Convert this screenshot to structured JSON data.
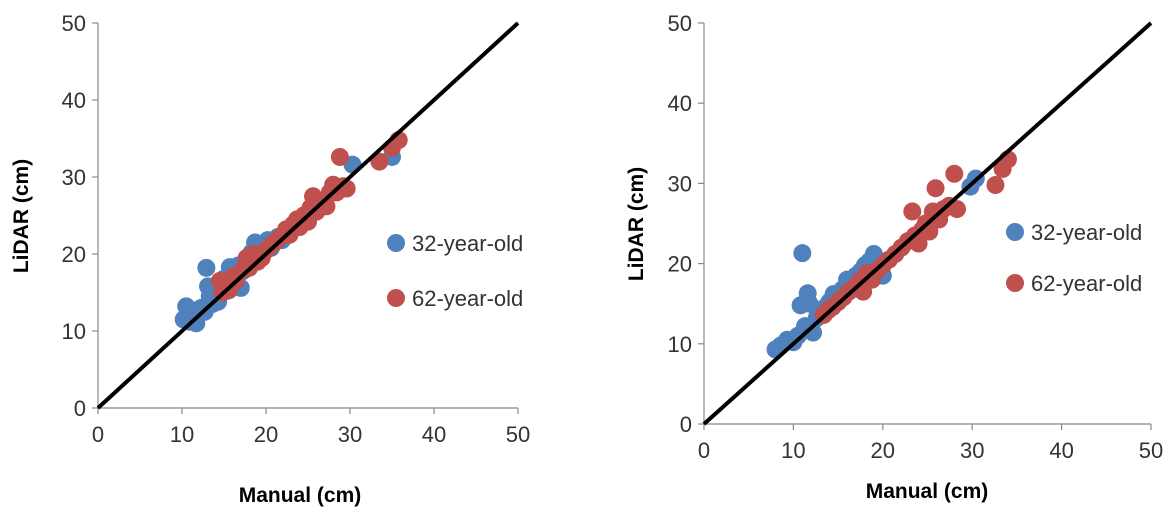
{
  "chart_data": [
    {
      "type": "scatter",
      "xlabel": "Manual (cm)",
      "ylabel": "LiDAR (cm)",
      "xlim": [
        0,
        50
      ],
      "ylim": [
        0,
        50
      ],
      "xticks": [
        "0",
        "10",
        "20",
        "30",
        "40",
        "50"
      ],
      "yticks": [
        "0",
        "10",
        "20",
        "30",
        "40",
        "50"
      ],
      "grid": false,
      "legend_position": "right",
      "reference_line": {
        "x": [
          0,
          50
        ],
        "y": [
          0,
          50
        ]
      },
      "series": [
        {
          "name": "32-year-old",
          "color": "#4F81BD",
          "points": [
            [
              10.2,
              11.5
            ],
            [
              10.5,
              13.2
            ],
            [
              10.8,
              12.0
            ],
            [
              11.0,
              11.2
            ],
            [
              11.3,
              12.4
            ],
            [
              11.7,
              11.0
            ],
            [
              12.0,
              12.8
            ],
            [
              12.3,
              13.0
            ],
            [
              12.7,
              12.5
            ],
            [
              12.9,
              18.2
            ],
            [
              13.1,
              15.8
            ],
            [
              13.3,
              14.5
            ],
            [
              13.6,
              13.5
            ],
            [
              14.0,
              14.8
            ],
            [
              14.3,
              13.8
            ],
            [
              14.6,
              15.5
            ],
            [
              15.0,
              16.8
            ],
            [
              15.3,
              15.2
            ],
            [
              15.7,
              18.3
            ],
            [
              16.0,
              17.5
            ],
            [
              16.3,
              16.0
            ],
            [
              16.7,
              18.5
            ],
            [
              17.0,
              15.6
            ],
            [
              17.3,
              17.8
            ],
            [
              17.7,
              19.0
            ],
            [
              18.0,
              18.5
            ],
            [
              18.3,
              20.2
            ],
            [
              18.7,
              21.5
            ],
            [
              19.0,
              19.8
            ],
            [
              19.4,
              21.0
            ],
            [
              19.8,
              20.5
            ],
            [
              20.2,
              21.8
            ],
            [
              20.6,
              20.8
            ],
            [
              21.0,
              21.5
            ],
            [
              21.4,
              22.2
            ],
            [
              21.9,
              21.8
            ],
            [
              30.3,
              31.6
            ],
            [
              35.0,
              32.6
            ]
          ]
        },
        {
          "name": "62-year-old",
          "color": "#C0504D",
          "points": [
            [
              14.5,
              16.5
            ],
            [
              14.8,
              15.0
            ],
            [
              15.2,
              16.0
            ],
            [
              15.6,
              15.3
            ],
            [
              16.0,
              17.0
            ],
            [
              16.4,
              16.5
            ],
            [
              16.8,
              17.5
            ],
            [
              17.3,
              18.0
            ],
            [
              17.7,
              19.5
            ],
            [
              18.0,
              18.2
            ],
            [
              18.5,
              20.0
            ],
            [
              19.0,
              19.0
            ],
            [
              19.5,
              19.5
            ],
            [
              20.0,
              20.5
            ],
            [
              20.5,
              21.0
            ],
            [
              21.0,
              21.5
            ],
            [
              21.5,
              22.0
            ],
            [
              22.0,
              22.5
            ],
            [
              22.4,
              23.2
            ],
            [
              22.8,
              22.5
            ],
            [
              23.2,
              23.8
            ],
            [
              23.7,
              24.5
            ],
            [
              24.0,
              23.5
            ],
            [
              24.5,
              25.0
            ],
            [
              25.0,
              24.2
            ],
            [
              25.3,
              26.0
            ],
            [
              25.6,
              27.5
            ],
            [
              26.0,
              25.5
            ],
            [
              26.4,
              26.5
            ],
            [
              26.8,
              27.0
            ],
            [
              27.2,
              26.2
            ],
            [
              27.6,
              28.0
            ],
            [
              28.0,
              29.0
            ],
            [
              28.4,
              28.0
            ],
            [
              28.8,
              32.6
            ],
            [
              29.2,
              28.8
            ],
            [
              29.6,
              28.5
            ],
            [
              33.5,
              32.0
            ],
            [
              35.0,
              33.8
            ],
            [
              35.8,
              34.8
            ]
          ]
        }
      ]
    },
    {
      "type": "scatter",
      "xlabel": "Manual (cm)",
      "ylabel": "LiDAR (cm)",
      "xlim": [
        0,
        50
      ],
      "ylim": [
        0,
        50
      ],
      "xticks": [
        "0",
        "10",
        "20",
        "30",
        "40",
        "50"
      ],
      "yticks": [
        "0",
        "10",
        "20",
        "30",
        "40",
        "50"
      ],
      "grid": false,
      "legend_position": "right",
      "reference_line": {
        "x": [
          0,
          50
        ],
        "y": [
          0,
          50
        ]
      },
      "series": [
        {
          "name": "32-year-old",
          "color": "#4F81BD",
          "points": [
            [
              8.0,
              9.3
            ],
            [
              8.6,
              9.8
            ],
            [
              9.3,
              10.5
            ],
            [
              10.0,
              10.2
            ],
            [
              10.5,
              11.0
            ],
            [
              10.8,
              14.8
            ],
            [
              11.0,
              21.3
            ],
            [
              11.3,
              12.2
            ],
            [
              11.6,
              16.3
            ],
            [
              11.8,
              15.0
            ],
            [
              12.2,
              11.4
            ],
            [
              12.6,
              13.2
            ],
            [
              13.0,
              13.8
            ],
            [
              13.5,
              14.5
            ],
            [
              14.0,
              15.2
            ],
            [
              14.5,
              16.2
            ],
            [
              15.0,
              15.5
            ],
            [
              15.5,
              16.8
            ],
            [
              16.0,
              18.0
            ],
            [
              16.5,
              17.2
            ],
            [
              17.0,
              18.5
            ],
            [
              17.5,
              19.0
            ],
            [
              18.0,
              19.8
            ],
            [
              18.5,
              20.3
            ],
            [
              19.0,
              21.2
            ],
            [
              19.5,
              19.5
            ],
            [
              20.0,
              18.5
            ],
            [
              29.8,
              29.6
            ],
            [
              30.4,
              30.6
            ]
          ]
        },
        {
          "name": "62-year-old",
          "color": "#C0504D",
          "points": [
            [
              13.4,
              13.6
            ],
            [
              13.9,
              14.2
            ],
            [
              14.4,
              14.6
            ],
            [
              15.0,
              15.2
            ],
            [
              15.6,
              15.8
            ],
            [
              16.2,
              16.5
            ],
            [
              16.8,
              17.0
            ],
            [
              17.4,
              17.8
            ],
            [
              17.8,
              16.5
            ],
            [
              18.2,
              18.8
            ],
            [
              18.8,
              18.0
            ],
            [
              19.4,
              19.2
            ],
            [
              20.0,
              19.8
            ],
            [
              20.7,
              20.5
            ],
            [
              21.4,
              21.2
            ],
            [
              22.1,
              22.0
            ],
            [
              22.8,
              22.8
            ],
            [
              23.3,
              26.5
            ],
            [
              23.6,
              23.5
            ],
            [
              24.0,
              22.5
            ],
            [
              24.4,
              24.2
            ],
            [
              24.8,
              25.0
            ],
            [
              25.2,
              24.0
            ],
            [
              25.6,
              26.5
            ],
            [
              25.9,
              29.4
            ],
            [
              26.3,
              25.5
            ],
            [
              26.8,
              26.8
            ],
            [
              27.4,
              27.2
            ],
            [
              28.0,
              31.2
            ],
            [
              28.3,
              26.8
            ],
            [
              32.6,
              29.8
            ],
            [
              33.4,
              31.8
            ],
            [
              34.0,
              33.0
            ]
          ]
        }
      ]
    }
  ]
}
